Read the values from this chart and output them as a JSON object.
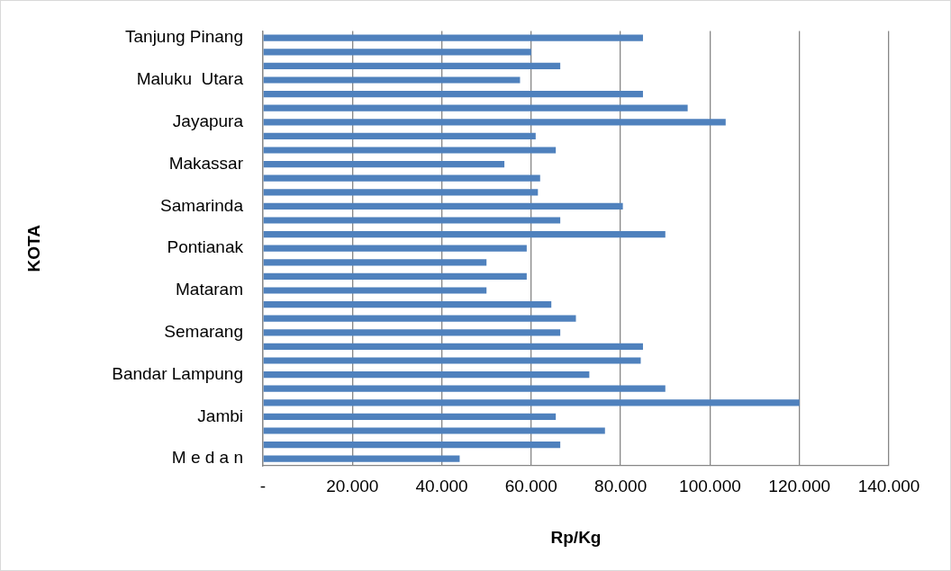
{
  "chart_data": {
    "type": "bar",
    "orientation": "horizontal",
    "xlabel": "Rp/Kg",
    "ylabel": "KOTA",
    "categories": [
      "Tanjung Pinang",
      null,
      null,
      "Maluku  Utara",
      null,
      null,
      "Jayapura",
      null,
      null,
      "Makassar",
      null,
      null,
      "Samarinda",
      null,
      null,
      "Pontianak",
      null,
      null,
      "Mataram",
      null,
      null,
      "Semarang",
      null,
      null,
      "Bandar Lampung",
      null,
      null,
      "Jambi",
      null,
      null,
      "M e d a n"
    ],
    "values": [
      85000,
      60000,
      66500,
      57500,
      85000,
      95000,
      103500,
      61000,
      65500,
      54000,
      62000,
      61500,
      80500,
      66500,
      90000,
      59000,
      50000,
      59000,
      50000,
      64500,
      70000,
      66500,
      85000,
      84500,
      73000,
      90000,
      120000,
      65500,
      76500,
      66500,
      44000
    ],
    "color": "#4f81bd",
    "xlim": [
      0,
      140000
    ],
    "xticks": [
      {
        "value": 0,
        "label": "-"
      },
      {
        "value": 20000,
        "label": "20.000"
      },
      {
        "value": 40000,
        "label": "40.000"
      },
      {
        "value": 60000,
        "label": "60.000"
      },
      {
        "value": 80000,
        "label": "80.000"
      },
      {
        "value": 100000,
        "label": "100.000"
      },
      {
        "value": 120000,
        "label": "120.000"
      },
      {
        "value": 140000,
        "label": "140.000"
      }
    ],
    "grid": "x",
    "legend": false
  }
}
